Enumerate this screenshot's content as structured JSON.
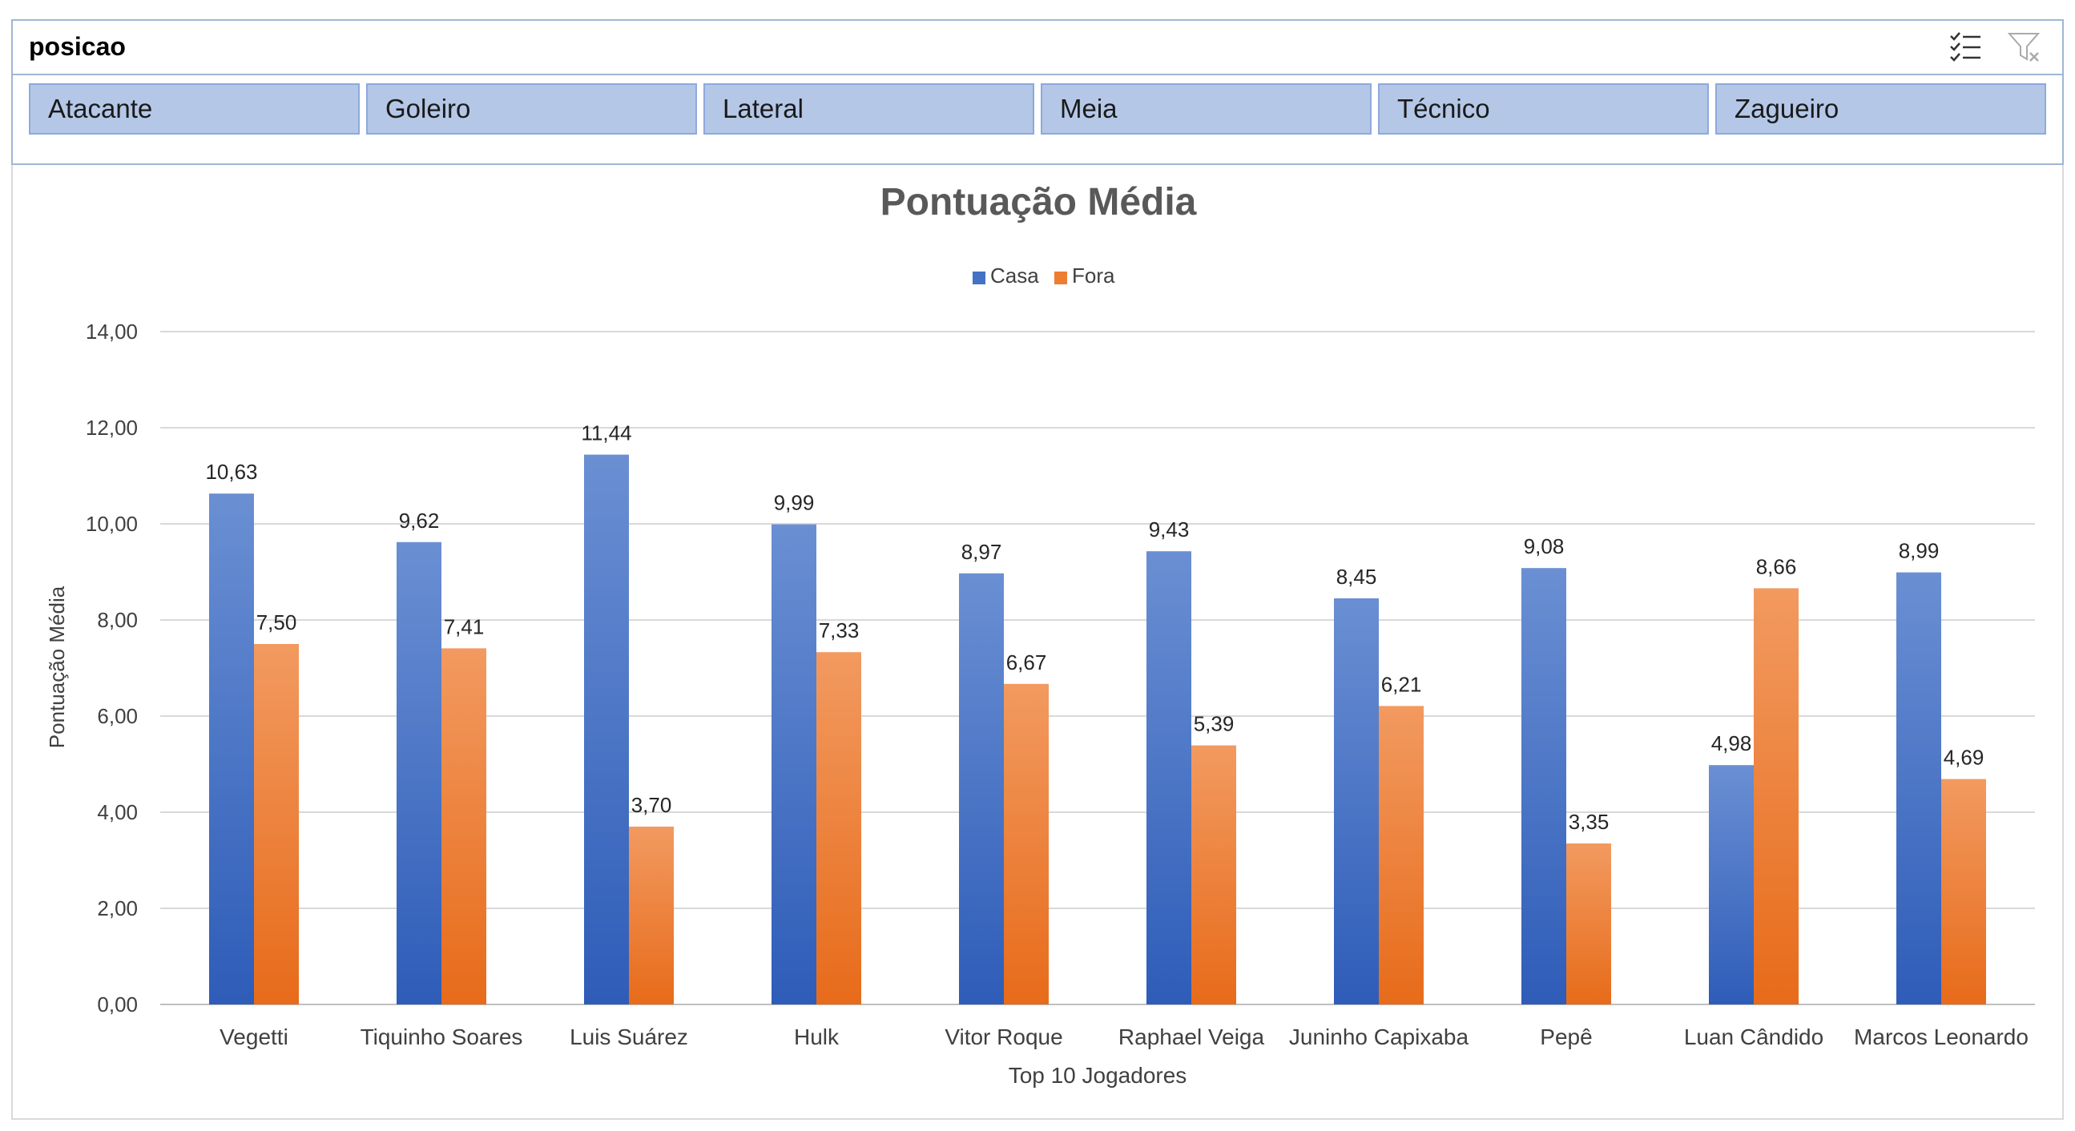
{
  "slicer": {
    "title": "posicao",
    "icons": [
      "multi-select-icon",
      "clear-filter-icon"
    ],
    "items": [
      "Atacante",
      "Goleiro",
      "Lateral",
      "Meia",
      "Técnico",
      "Zagueiro"
    ]
  },
  "colors": {
    "casa": "#4472c4",
    "fora": "#ed7d31",
    "grid": "#d9d9d9",
    "text": "#404040",
    "title": "#595959"
  },
  "chart_data": {
    "type": "bar",
    "title": "Pontuação Média",
    "xlabel": "Top 10 Jogadores",
    "ylabel": "Pontuação Média",
    "ylim": [
      0,
      14
    ],
    "yticks": [
      "0,00",
      "2,00",
      "4,00",
      "6,00",
      "8,00",
      "10,00",
      "12,00",
      "14,00"
    ],
    "legend_position": "top",
    "grid": true,
    "categories": [
      "Vegetti",
      "Tiquinho Soares",
      "Luis Suárez",
      "Hulk",
      "Vitor Roque",
      "Raphael Veiga",
      "Juninho Capixaba",
      "Pepê",
      "Luan Cândido",
      "Marcos Leonardo"
    ],
    "series": [
      {
        "name": "Casa",
        "values": [
          10.63,
          9.62,
          11.44,
          9.99,
          8.97,
          9.43,
          8.45,
          9.08,
          4.98,
          8.99
        ],
        "labels": [
          "10,63",
          "9,62",
          "11,44",
          "9,99",
          "8,97",
          "9,43",
          "8,45",
          "9,08",
          "4,98",
          "8,99"
        ]
      },
      {
        "name": "Fora",
        "values": [
          7.5,
          7.41,
          3.7,
          7.33,
          6.67,
          5.39,
          6.21,
          3.35,
          8.66,
          4.69
        ],
        "labels": [
          "7,50",
          "7,41",
          "3,70",
          "7,33",
          "6,67",
          "5,39",
          "6,21",
          "3,35",
          "8,66",
          "4,69"
        ]
      }
    ]
  }
}
